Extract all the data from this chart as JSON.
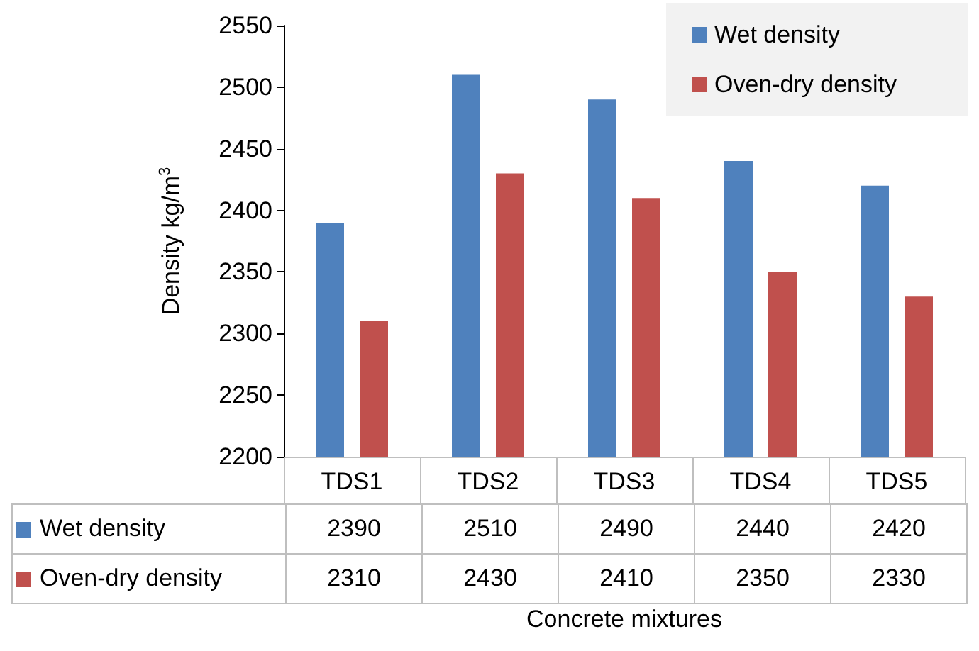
{
  "chart_data": {
    "type": "bar",
    "xlabel": "Concrete mixtures",
    "ylabel": "Density kg/m$^{3}$",
    "categories": [
      "TDS1",
      "TDS2",
      "TDS3",
      "TDS4",
      "TDS5"
    ],
    "series": [
      {
        "name": "Wet density",
        "color": "#4f81bd",
        "values": [
          2390,
          2510,
          2490,
          2440,
          2420
        ]
      },
      {
        "name": "Oven-dry density",
        "color": "#c0504d",
        "values": [
          2310,
          2430,
          2410,
          2350,
          2330
        ]
      }
    ],
    "ylim": [
      2200,
      2550
    ],
    "yticks": [
      2200,
      2250,
      2300,
      2350,
      2400,
      2450,
      2500,
      2550
    ],
    "grid": false,
    "legend": "top right",
    "data_labels": true
  }
}
